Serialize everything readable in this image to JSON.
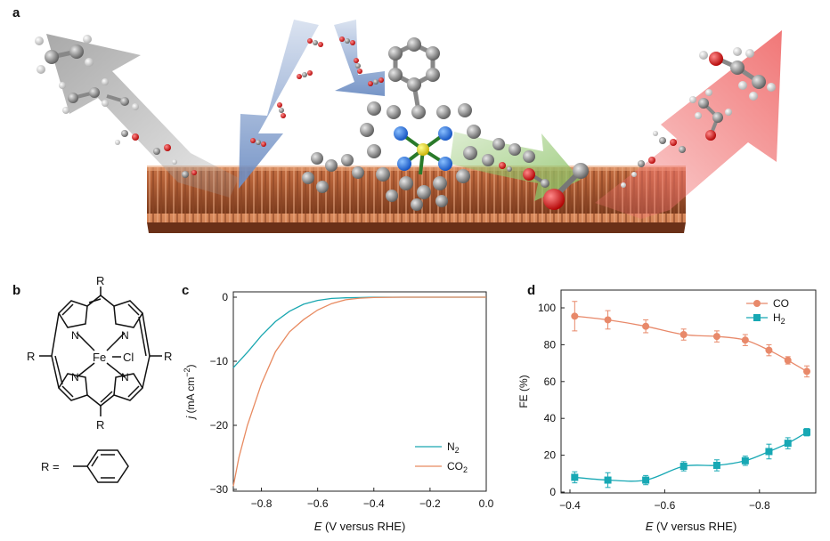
{
  "panels": {
    "a": "a",
    "b": "b",
    "c": "c",
    "d": "d"
  },
  "struct": {
    "atoms": {
      "n": "N",
      "fe": "Fe",
      "cl": "Cl",
      "r": "R",
      "req": "R ="
    }
  },
  "colors": {
    "copper": "#b8643a",
    "copper_dark": "#7a3a1c",
    "arrow_gray": "#9a9a9a",
    "arrow_blue": "#6f8fc4",
    "arrow_green": "#8fc46a",
    "arrow_red": "#f07070",
    "n2_line": "#1aa7b0",
    "co2_line": "#e88a60",
    "co_series": "#e8896a",
    "h2_series": "#17a8b4"
  },
  "chart_data": [
    {
      "panel": "c",
      "type": "line",
      "xlabel_italic": "E",
      "xlabel_rest": " (V versus RHE)",
      "ylabel_italic": "j",
      "ylabel_rest": " (mA cm",
      "ylabel_sup": "−2",
      "ylabel_close": ")",
      "xlim": [
        -0.9,
        0.0
      ],
      "ylim": [
        -30,
        1
      ],
      "xticks": [
        -0.8,
        -0.6,
        -0.4,
        -0.2,
        0.0
      ],
      "xtick_labels": [
        "−0.8",
        "−0.6",
        "−0.4",
        "−0.2",
        "0.0"
      ],
      "yticks": [
        0,
        -10,
        -20,
        -30
      ],
      "ytick_labels": [
        "0",
        "−10",
        "−20",
        "−30"
      ],
      "series": [
        {
          "name": "N",
          "name_sub": "2",
          "x": [
            -0.9,
            -0.85,
            -0.8,
            -0.75,
            -0.7,
            -0.65,
            -0.6,
            -0.55,
            -0.5,
            -0.45,
            -0.4,
            -0.3,
            -0.2,
            -0.1,
            0.0
          ],
          "y": [
            -11,
            -8.6,
            -6.0,
            -3.8,
            -2.2,
            -1.1,
            -0.5,
            -0.2,
            -0.1,
            -0.05,
            0,
            0,
            0,
            0,
            0
          ]
        },
        {
          "name": "CO",
          "name_sub": "2",
          "x": [
            -0.9,
            -0.88,
            -0.85,
            -0.8,
            -0.75,
            -0.7,
            -0.65,
            -0.6,
            -0.55,
            -0.5,
            -0.45,
            -0.4,
            -0.3,
            -0.2,
            -0.1,
            0.0
          ],
          "y": [
            -29.5,
            -25,
            -20,
            -13.5,
            -8.5,
            -5.4,
            -3.5,
            -2.0,
            -1.0,
            -0.4,
            -0.15,
            -0.05,
            0,
            0,
            0,
            0
          ]
        }
      ]
    },
    {
      "panel": "d",
      "type": "line",
      "xlabel_italic": "E",
      "xlabel_rest": " (V versus RHE)",
      "ylabel": "FE (%)",
      "xlim": [
        -0.9,
        -0.38
      ],
      "ylim": [
        0,
        105
      ],
      "xticks": [
        -0.8,
        -0.6,
        -0.4
      ],
      "xtick_labels": [
        "−0.8",
        "−0.6",
        "−0.4"
      ],
      "yticks": [
        0,
        20,
        40,
        60,
        80,
        100
      ],
      "ytick_labels": [
        "0",
        "20",
        "40",
        "60",
        "80",
        "100"
      ],
      "legend_position": "top-right",
      "series": [
        {
          "name": "CO",
          "name_sub": "",
          "marker": "circle",
          "x": [
            -0.41,
            -0.48,
            -0.56,
            -0.64,
            -0.71,
            -0.77,
            -0.82,
            -0.86,
            -0.9
          ],
          "y": [
            95.5,
            93.5,
            90,
            85.5,
            84.5,
            82.5,
            77,
            71.5,
            65.5
          ],
          "err": [
            8,
            5,
            3.5,
            3,
            3,
            3,
            3,
            2,
            3
          ]
        },
        {
          "name": "H",
          "name_sub": "2",
          "marker": "square",
          "x": [
            -0.41,
            -0.48,
            -0.56,
            -0.64,
            -0.71,
            -0.77,
            -0.82,
            -0.86,
            -0.9
          ],
          "y": [
            8,
            6.5,
            6.5,
            14,
            14.5,
            17,
            22,
            26.5,
            32.5
          ],
          "err": [
            3,
            4,
            2.5,
            2.5,
            3,
            2.5,
            4,
            3,
            2
          ]
        }
      ]
    }
  ]
}
